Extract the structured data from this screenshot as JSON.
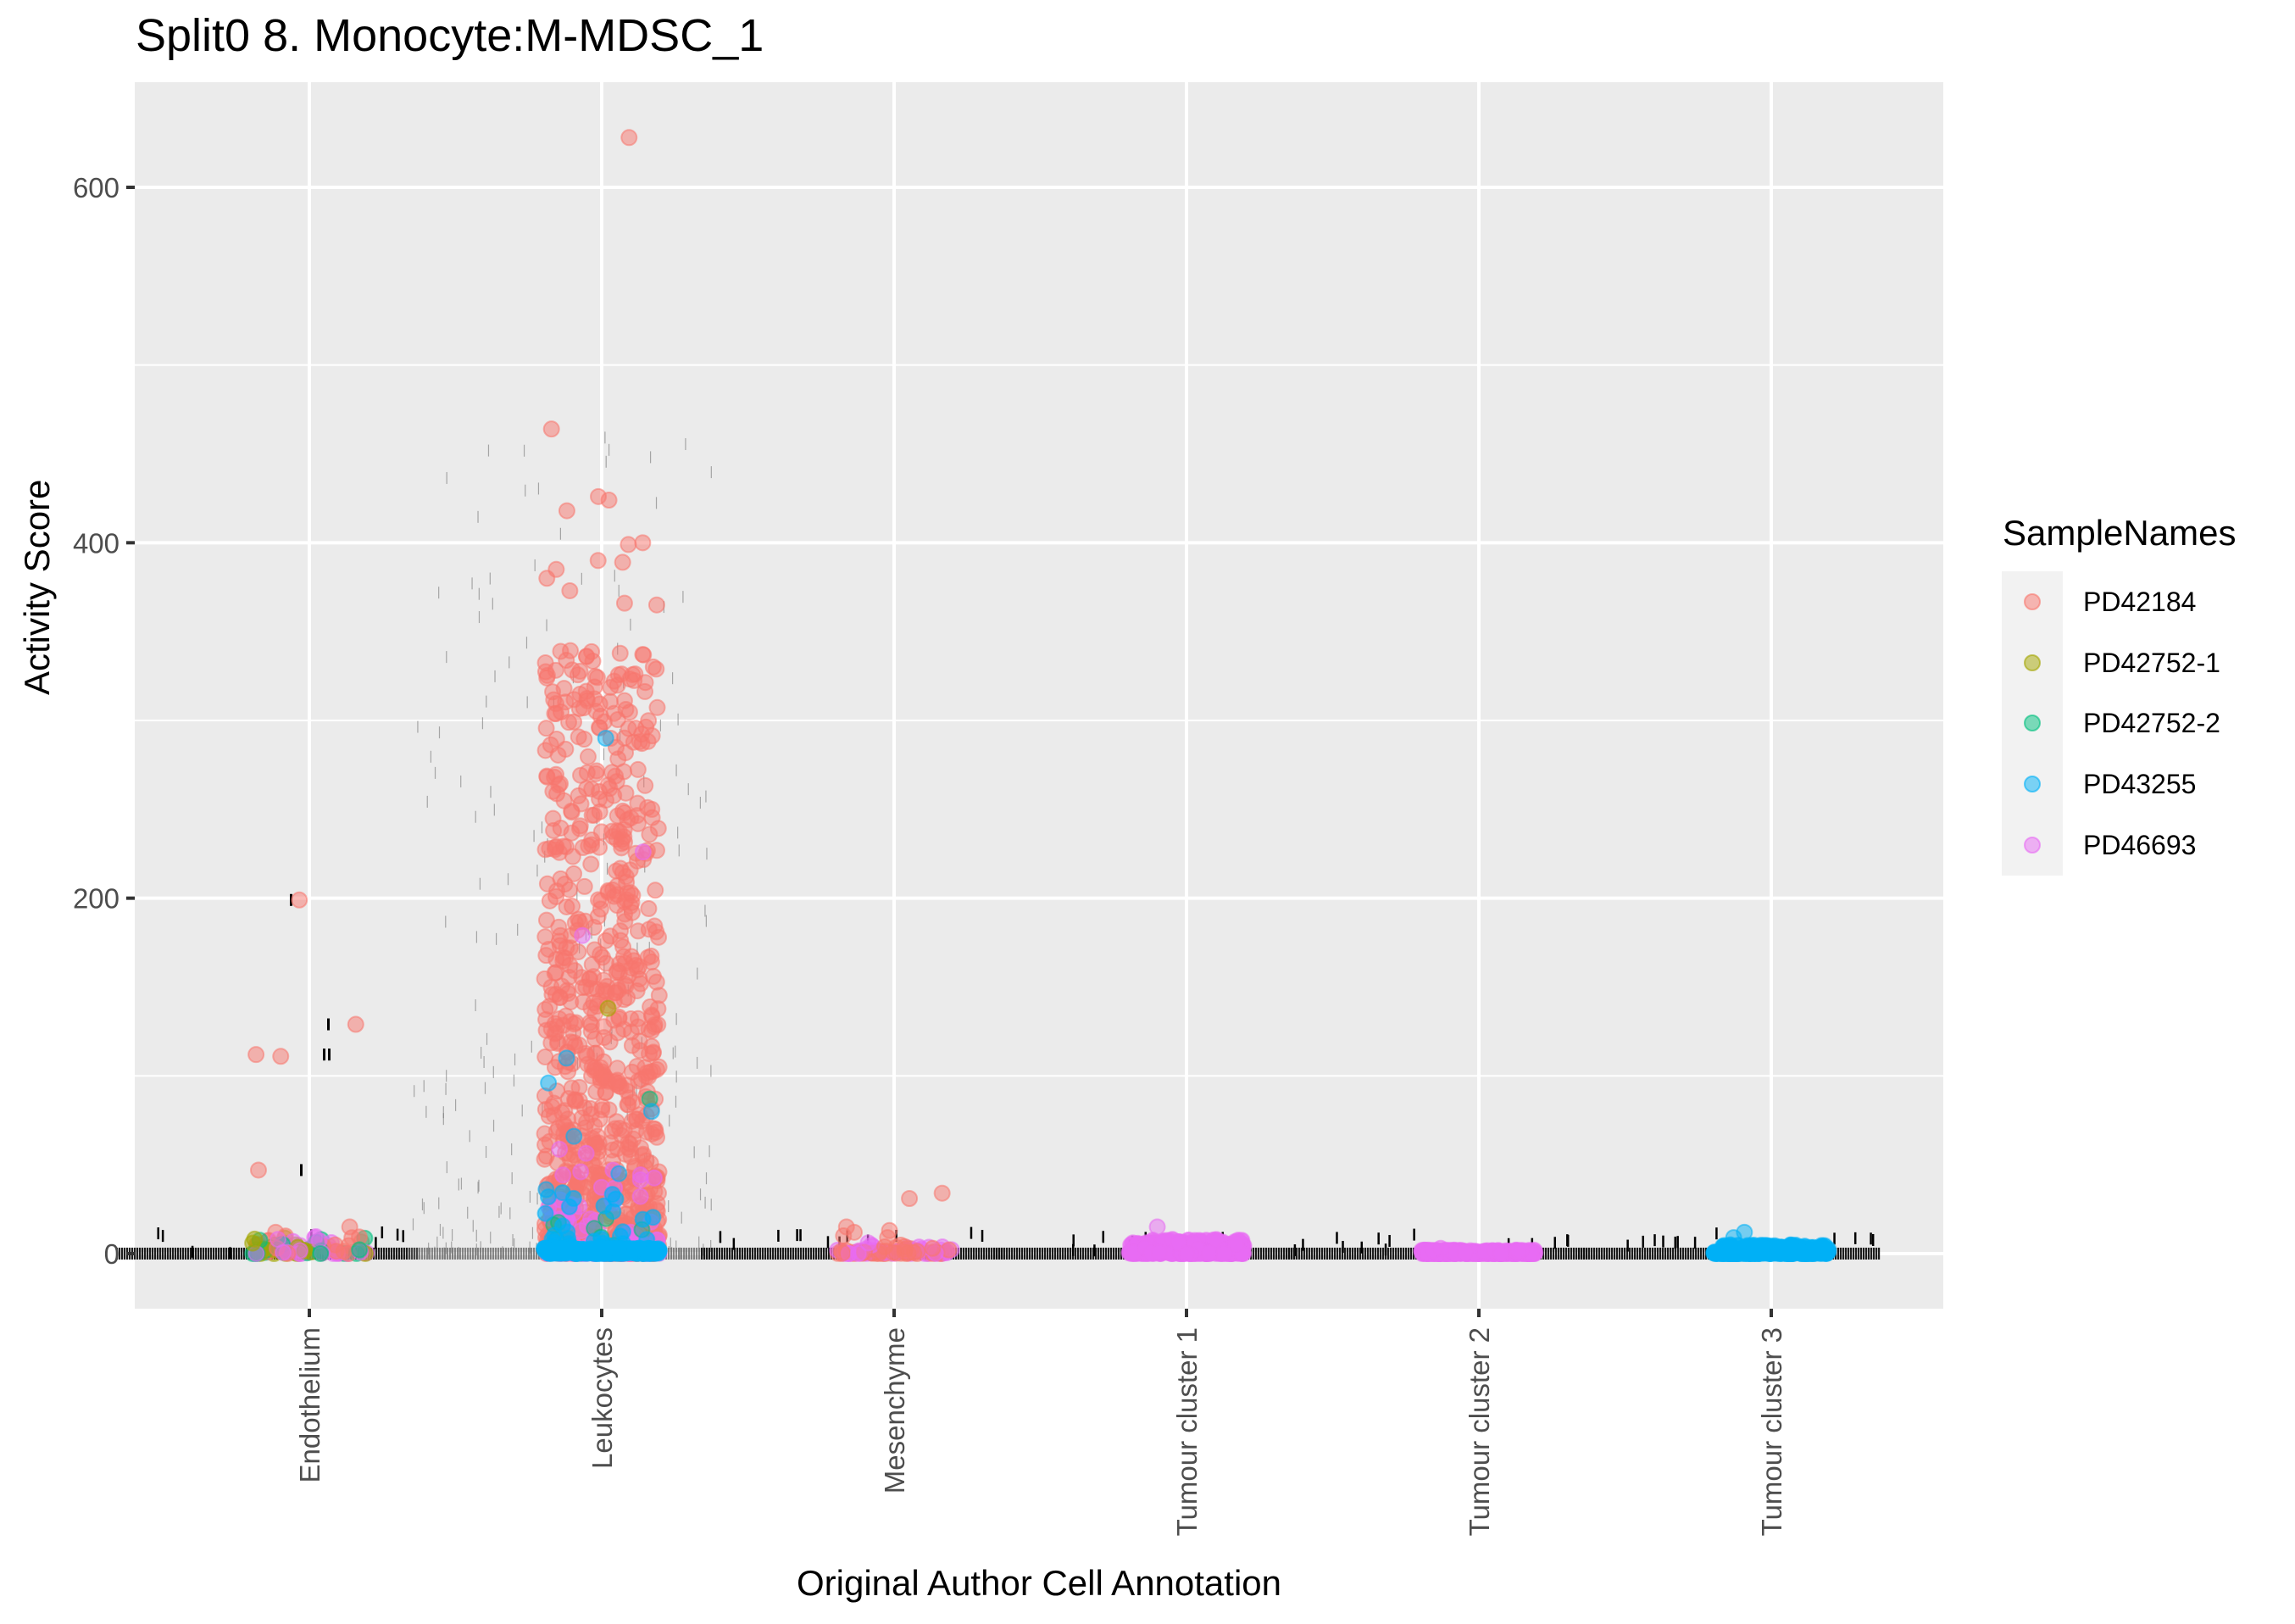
{
  "chart_data": {
    "type": "scatter",
    "subtype": "jittered strip plot (categorical x)",
    "title": "Split0 8. Monocyte:M-MDSC_1",
    "xlabel": "Original Author Cell Annotation",
    "ylabel": "Activity Score",
    "categories": [
      "Endothelium",
      "Leukocytes",
      "Mesenchyme",
      "Tumour cluster 1",
      "Tumour cluster 2",
      "Tumour cluster 3"
    ],
    "ylim": [
      -30,
      650
    ],
    "yticks": [
      0,
      200,
      400,
      600
    ],
    "grid": true,
    "legend": {
      "title": "SampleNames",
      "position": "right",
      "entries": [
        {
          "name": "PD42184",
          "color": "#F8766D"
        },
        {
          "name": "PD42752-1",
          "color": "#A3A500"
        },
        {
          "name": "PD42752-2",
          "color": "#00BF7D"
        },
        {
          "name": "PD43255",
          "color": "#00B0F6"
        },
        {
          "name": "PD46693",
          "color": "#E76BF3"
        }
      ]
    },
    "series": [
      {
        "category": "Endothelium",
        "notable_points": [
          {
            "sample": "PD42184",
            "y": 199
          },
          {
            "sample": "PD42184",
            "y": 129
          },
          {
            "sample": "PD42184",
            "y": 112
          },
          {
            "sample": "PD42184",
            "y": 111
          },
          {
            "sample": "PD42184",
            "y": 47
          },
          {
            "sample": "PD42184",
            "y": 15
          },
          {
            "sample": "PD42184",
            "y": 12
          },
          {
            "sample": "PD46693",
            "y": 8
          }
        ],
        "bulk": {
          "range": [
            0,
            10
          ],
          "samples": [
            "PD42184",
            "PD42752-1",
            "PD46693",
            "PD42752-2"
          ]
        }
      },
      {
        "category": "Leukocytes",
        "notable_points": [
          {
            "sample": "PD42184",
            "y": 628
          },
          {
            "sample": "PD42184",
            "y": 464
          },
          {
            "sample": "PD42184",
            "y": 426
          },
          {
            "sample": "PD42184",
            "y": 424
          },
          {
            "sample": "PD42184",
            "y": 418
          },
          {
            "sample": "PD42184",
            "y": 400
          },
          {
            "sample": "PD42184",
            "y": 399
          },
          {
            "sample": "PD42184",
            "y": 390
          },
          {
            "sample": "PD42184",
            "y": 389
          },
          {
            "sample": "PD42184",
            "y": 385
          },
          {
            "sample": "PD42184",
            "y": 380
          },
          {
            "sample": "PD42184",
            "y": 373
          },
          {
            "sample": "PD42184",
            "y": 366
          },
          {
            "sample": "PD42184",
            "y": 365
          },
          {
            "sample": "PD43255",
            "y": 290
          },
          {
            "sample": "PD46693",
            "y": 226
          },
          {
            "sample": "PD46693",
            "y": 179
          },
          {
            "sample": "PD42752-1",
            "y": 138
          },
          {
            "sample": "PD43255",
            "y": 110
          },
          {
            "sample": "PD43255",
            "y": 96
          },
          {
            "sample": "PD42752-2",
            "y": 87
          },
          {
            "sample": "PD43255",
            "y": 80
          },
          {
            "sample": "PD43255",
            "y": 66
          },
          {
            "sample": "PD43255",
            "y": 45
          },
          {
            "sample": "PD43255",
            "y": 36
          }
        ],
        "bulk": {
          "range": [
            0,
            350
          ],
          "dominant_sample": "PD42184",
          "dense_near_zero": "PD43255"
        }
      },
      {
        "category": "Mesenchyme",
        "notable_points": [
          {
            "sample": "PD42184",
            "y": 34
          },
          {
            "sample": "PD42184",
            "y": 31
          },
          {
            "sample": "PD42184",
            "y": 15
          },
          {
            "sample": "PD42184",
            "y": 13
          },
          {
            "sample": "PD42184",
            "y": 12
          },
          {
            "sample": "PD42184",
            "y": 10
          },
          {
            "sample": "PD42184",
            "y": 9
          },
          {
            "sample": "PD46693",
            "y": 6
          }
        ],
        "bulk": {
          "range": [
            0,
            5
          ],
          "samples": [
            "PD42184",
            "PD46693"
          ]
        }
      },
      {
        "category": "Tumour cluster 1",
        "notable_points": [
          {
            "sample": "PD46693",
            "y": 15
          }
        ],
        "bulk": {
          "range": [
            0,
            8
          ],
          "samples": [
            "PD46693"
          ]
        }
      },
      {
        "category": "Tumour cluster 2",
        "notable_points": [
          {
            "sample": "PD46693",
            "y": 3
          }
        ],
        "bulk": {
          "range": [
            0,
            2
          ],
          "samples": [
            "PD46693"
          ]
        }
      },
      {
        "category": "Tumour cluster 3",
        "notable_points": [
          {
            "sample": "PD43255",
            "y": 12
          },
          {
            "sample": "PD43255",
            "y": 9
          }
        ],
        "bulk": {
          "range": [
            0,
            5
          ],
          "samples": [
            "PD43255"
          ]
        }
      }
    ]
  },
  "header": {
    "title": "Split0 8. Monocyte:M-MDSC_1"
  },
  "axes": {
    "x_title": "Original Author Cell Annotation",
    "y_title": "Activity Score",
    "y_tick_labels": [
      "0",
      "200",
      "400",
      "600"
    ]
  },
  "legend": {
    "title": "SampleNames",
    "items": [
      {
        "label": "PD42184"
      },
      {
        "label": "PD42752-1"
      },
      {
        "label": "PD42752-2"
      },
      {
        "label": "PD43255"
      },
      {
        "label": "PD46693"
      }
    ]
  },
  "colors": {
    "panel_bg": "#EBEBEB",
    "grid": "#FFFFFF",
    "tick_text": "#4D4D4D",
    "PD42184": "#F8766D",
    "PD42752-1": "#A3A500",
    "PD42752-2": "#00BF7D",
    "PD43255": "#00B0F6",
    "PD46693": "#E76BF3"
  }
}
